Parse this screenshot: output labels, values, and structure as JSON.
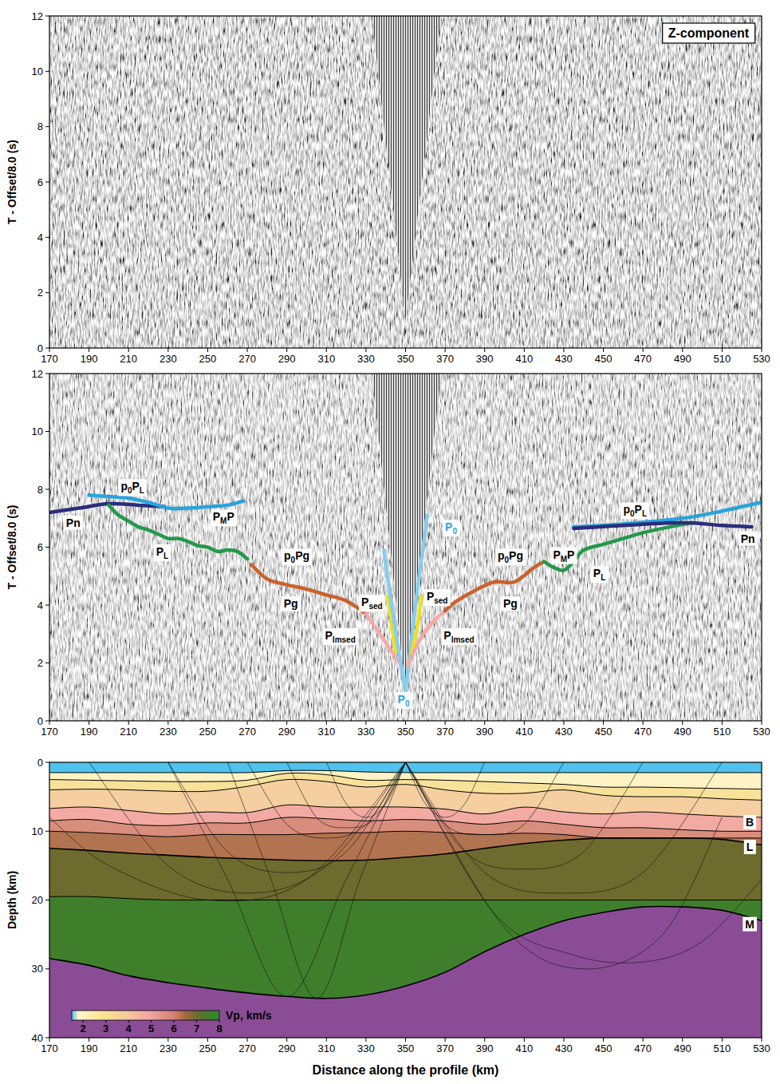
{
  "chart_data": [
    {
      "type": "seismic_section",
      "title": "Z-component",
      "ylabel": "T - Offset/8.0 (s)",
      "xlim": [
        170,
        530
      ],
      "xticks": [
        170,
        190,
        210,
        230,
        250,
        270,
        290,
        310,
        330,
        350,
        370,
        390,
        410,
        430,
        450,
        470,
        490,
        510,
        530
      ],
      "ylim": [
        0,
        12
      ],
      "yticks": [
        0,
        2,
        4,
        6,
        8,
        10,
        12
      ],
      "mute_zone": {
        "x": [
          333,
          350,
          368
        ],
        "y": [
          12,
          1.0,
          12
        ]
      }
    },
    {
      "type": "line",
      "ylabel": "T - Offset/8.0 (s)",
      "xlim": [
        170,
        530
      ],
      "xticks": [
        170,
        190,
        210,
        230,
        250,
        270,
        290,
        310,
        330,
        350,
        370,
        390,
        410,
        430,
        450,
        470,
        490,
        510,
        530
      ],
      "ylim": [
        0,
        12
      ],
      "yticks": [
        0,
        2,
        4,
        6,
        8,
        10,
        12
      ],
      "mute_zone": {
        "x": [
          333,
          350,
          368
        ],
        "y": [
          12,
          1.0,
          12
        ]
      },
      "series": [
        {
          "color": "#2b2d7c",
          "x": [
            170,
            185,
            200,
            215,
            228
          ],
          "values": [
            7.2,
            7.35,
            7.5,
            7.45,
            7.4
          ]
        },
        {
          "color": "#2aa3dd",
          "x": [
            190,
            200,
            210,
            220,
            230,
            240,
            250,
            260,
            268
          ],
          "values": [
            7.8,
            7.75,
            7.7,
            7.55,
            7.35,
            7.35,
            7.4,
            7.45,
            7.6
          ]
        },
        {
          "color": "#23994a",
          "x": [
            200,
            205,
            210,
            215,
            220,
            225,
            230,
            235,
            240,
            245,
            250,
            255,
            260,
            265,
            270
          ],
          "values": [
            7.45,
            7.1,
            6.9,
            6.7,
            6.6,
            6.45,
            6.3,
            6.3,
            6.2,
            6.05,
            6.0,
            5.85,
            5.9,
            5.85,
            5.6
          ]
        },
        {
          "color": "#c9622c",
          "x": [
            272,
            280,
            290,
            300,
            310,
            320,
            330
          ],
          "values": [
            5.4,
            4.9,
            4.7,
            4.55,
            4.35,
            4.15,
            3.7
          ]
        },
        {
          "color": "#f3aaa8",
          "x": [
            330,
            335,
            340,
            345,
            348
          ],
          "values": [
            3.7,
            3.2,
            2.7,
            2.2,
            1.9
          ]
        },
        {
          "color": "#efe01c",
          "x": [
            341,
            343,
            345
          ],
          "values": [
            4.3,
            3.3,
            2.4
          ]
        },
        {
          "color": "#86cdee",
          "x": [
            339,
            344,
            350
          ],
          "values": [
            5.9,
            3.5,
            1.0
          ]
        },
        {
          "color": "#86cdee",
          "x": [
            350,
            355,
            361
          ],
          "values": [
            1.0,
            4.0,
            7.1
          ]
        },
        {
          "color": "#efe01c",
          "x": [
            353,
            356,
            358
          ],
          "values": [
            2.3,
            3.3,
            4.3
          ]
        },
        {
          "color": "#f3aaa8",
          "x": [
            351,
            355,
            360,
            365,
            370
          ],
          "values": [
            1.9,
            2.5,
            3.1,
            3.5,
            3.8
          ]
        },
        {
          "color": "#c9622c",
          "x": [
            370,
            375,
            385,
            395,
            405,
            415,
            420
          ],
          "values": [
            3.8,
            4.1,
            4.5,
            4.8,
            4.8,
            5.3,
            5.5
          ]
        },
        {
          "color": "#23994a",
          "x": [
            420,
            425,
            430,
            435,
            440,
            450,
            460,
            470,
            480,
            495
          ],
          "values": [
            5.5,
            5.3,
            5.2,
            5.5,
            5.9,
            6.1,
            6.3,
            6.5,
            6.65,
            6.85
          ]
        },
        {
          "color": "#2aa3dd",
          "x": [
            435,
            460,
            490,
            510,
            530
          ],
          "values": [
            6.7,
            6.8,
            7.0,
            7.25,
            7.55
          ]
        },
        {
          "color": "#2b2d7c",
          "x": [
            435,
            460,
            490,
            510,
            525
          ],
          "values": [
            6.65,
            6.75,
            6.85,
            6.75,
            6.7
          ]
        }
      ],
      "annotations": [
        {
          "text": "Pn",
          "x": 182,
          "y": 6.85
        },
        {
          "text": "p0PL",
          "x": 212,
          "y": 8.1
        },
        {
          "text": "PMP",
          "x": 258,
          "y": 7.05
        },
        {
          "text": "PL",
          "x": 227,
          "y": 5.85
        },
        {
          "text": "p0Pg",
          "x": 295,
          "y": 5.7
        },
        {
          "text": "Pg",
          "x": 292,
          "y": 4.05
        },
        {
          "text": "Psed",
          "x": 333,
          "y": 4.1
        },
        {
          "text": "Plmsed",
          "x": 317,
          "y": 2.95
        },
        {
          "text": "P0",
          "x": 349,
          "y": 0.75,
          "color": "#2aa3dd"
        },
        {
          "text": "P0",
          "x": 373,
          "y": 6.7,
          "color": "#2aa3dd"
        },
        {
          "text": "Psed",
          "x": 366,
          "y": 4.3
        },
        {
          "text": "Plmsed",
          "x": 377,
          "y": 2.95
        },
        {
          "text": "p0Pg",
          "x": 403,
          "y": 5.7
        },
        {
          "text": "Pg",
          "x": 403,
          "y": 4.05
        },
        {
          "text": "PMP",
          "x": 430,
          "y": 5.75
        },
        {
          "text": "PL",
          "x": 448,
          "y": 5.1
        },
        {
          "text": "p0PL",
          "x": 466,
          "y": 7.3
        },
        {
          "text": "Pn",
          "x": 523,
          "y": 6.3
        }
      ]
    },
    {
      "type": "velocity_model",
      "xlabel": "Distance along the profile (km)",
      "ylabel": "Depth (km)",
      "xlim": [
        170,
        530
      ],
      "xticks": [
        170,
        190,
        210,
        230,
        250,
        270,
        290,
        310,
        330,
        350,
        370,
        390,
        410,
        430,
        450,
        470,
        490,
        510,
        530
      ],
      "ylim": [
        0,
        40
      ],
      "yticks": [
        0,
        10,
        20,
        30,
        40
      ],
      "x": [
        170,
        190,
        210,
        230,
        250,
        270,
        290,
        310,
        330,
        350,
        370,
        390,
        410,
        430,
        450,
        470,
        490,
        510,
        530
      ],
      "layers": [
        {
          "color": "#4fc3ee",
          "top": [
            0,
            0,
            0,
            0,
            0,
            0,
            0,
            0,
            0,
            0,
            0,
            0,
            0,
            0,
            0,
            0,
            0,
            0,
            0
          ]
        },
        {
          "color": "#fdf3c4",
          "top": [
            1.5,
            1.5,
            1.5,
            1.5,
            1.5,
            1.5,
            1.2,
            1.2,
            1.4,
            1.5,
            1.5,
            1.5,
            1.5,
            1.5,
            1.5,
            1.5,
            1.5,
            1.5,
            1.5
          ]
        },
        {
          "color": "#f8e29a",
          "top": [
            2.5,
            2.6,
            2.7,
            2.8,
            2.8,
            2.6,
            1.6,
            1.8,
            2.6,
            2.5,
            2.6,
            2.8,
            3.0,
            3.2,
            3.6,
            3.6,
            3.7,
            3.8,
            3.9
          ]
        },
        {
          "color": "#f6cfa0",
          "top": [
            4.0,
            3.9,
            4.0,
            4.2,
            4.2,
            3.5,
            2.5,
            2.8,
            3.6,
            3.2,
            4.0,
            4.5,
            4.5,
            4.0,
            4.8,
            5.0,
            5.0,
            5.3,
            5.5
          ]
        },
        {
          "color": "#f2aaa2",
          "top": [
            6.7,
            6.5,
            7.0,
            7.5,
            7.2,
            7.3,
            6.2,
            6.5,
            6.5,
            6.5,
            6.8,
            7.5,
            6.5,
            7.2,
            7.5,
            7.2,
            7.5,
            7.8,
            8.0
          ]
        },
        {
          "color": "#d98d7c",
          "top": [
            8.5,
            8.3,
            9.0,
            9.2,
            8.8,
            8.8,
            8.0,
            8.2,
            8.5,
            8.3,
            8.5,
            9.0,
            8.5,
            9.0,
            9.5,
            9.5,
            9.8,
            10.0,
            10.0
          ]
        },
        {
          "color": "#b27450",
          "top": [
            10.0,
            10.2,
            10.5,
            10.8,
            10.5,
            10.5,
            10.5,
            10.3,
            10.2,
            10.0,
            10.2,
            10.5,
            10.3,
            10.5,
            11.0,
            11.0,
            11.0,
            11.0,
            11.0
          ]
        },
        {
          "color": "#6e6b2e",
          "top": [
            12.5,
            12.8,
            13.2,
            13.5,
            13.8,
            14.0,
            14.2,
            14.3,
            14.2,
            13.8,
            13.3,
            12.5,
            11.8,
            11.3,
            11.0,
            11.0,
            11.0,
            11.2,
            12.0
          ]
        },
        {
          "color": "#3f7f2c",
          "top": [
            19.5,
            19.5,
            19.8,
            20,
            20,
            20,
            20,
            20,
            20,
            20,
            20,
            20,
            20,
            20,
            20,
            20,
            20,
            20,
            20
          ]
        },
        {
          "color": "#8b4c96",
          "top": [
            28.5,
            29.5,
            31.0,
            32.0,
            32.8,
            33.5,
            34.0,
            34.3,
            33.8,
            32.5,
            30.5,
            27.5,
            25.0,
            23.0,
            21.8,
            21.0,
            21.0,
            21.5,
            23.0
          ]
        }
      ],
      "rays": [
        {
          "x": [
            350,
            340,
            330,
            320,
            310
          ],
          "y": [
            0,
            6,
            8,
            6,
            0
          ]
        },
        {
          "x": [
            350,
            335,
            320,
            305,
            290
          ],
          "y": [
            0,
            8,
            9.5,
            8,
            0
          ]
        },
        {
          "x": [
            350,
            330,
            310,
            290,
            270
          ],
          "y": [
            0,
            9,
            11,
            9,
            0
          ]
        },
        {
          "x": [
            350,
            320,
            290,
            260,
            230
          ],
          "y": [
            0,
            13,
            16,
            13,
            0
          ]
        },
        {
          "x": [
            350,
            310,
            270,
            230,
            190
          ],
          "y": [
            0,
            15,
            19,
            15,
            0
          ]
        },
        {
          "x": [
            350,
            300,
            250,
            200,
            170
          ],
          "y": [
            0,
            17,
            20,
            15,
            8
          ]
        },
        {
          "x": [
            350,
            327,
            305,
            282,
            260
          ],
          "y": [
            0,
            17,
            34.3,
            17,
            0
          ]
        },
        {
          "x": [
            350,
            320,
            290,
            260,
            230
          ],
          "y": [
            0,
            17,
            34,
            17,
            0
          ]
        },
        {
          "x": [
            350,
            360,
            370,
            380,
            390
          ],
          "y": [
            0,
            6,
            8,
            6,
            0
          ]
        },
        {
          "x": [
            350,
            370,
            390,
            410,
            430
          ],
          "y": [
            0,
            9,
            10.5,
            9,
            0
          ]
        },
        {
          "x": [
            350,
            380,
            410,
            440,
            470
          ],
          "y": [
            0,
            13,
            15.5,
            13,
            0
          ]
        },
        {
          "x": [
            350,
            390,
            430,
            470,
            510
          ],
          "y": [
            0,
            16,
            19,
            16,
            0
          ]
        },
        {
          "x": [
            350,
            395,
            435,
            470,
            500,
            530
          ],
          "y": [
            0,
            22,
            28,
            29,
            26,
            17
          ]
        },
        {
          "x": [
            350,
            400,
            440,
            480,
            510
          ],
          "y": [
            0,
            24,
            30,
            25,
            8
          ]
        }
      ],
      "annotations": [
        {
          "text": "B",
          "x": 524,
          "y": 8.7
        },
        {
          "text": "L",
          "x": 524,
          "y": 12.3
        },
        {
          "text": "M",
          "x": 524,
          "y": 23.5
        }
      ],
      "colorbar": {
        "label": "Vp, km/s",
        "range": [
          1.5,
          8
        ],
        "ticks": [
          2,
          3,
          4,
          5,
          6,
          7,
          8
        ],
        "stops": [
          {
            "value": 1.5,
            "color": "#4fc3ee"
          },
          {
            "value": 1.8,
            "color": "#fdf6c8"
          },
          {
            "value": 3,
            "color": "#f9e08f"
          },
          {
            "value": 4,
            "color": "#f6c79b"
          },
          {
            "value": 5,
            "color": "#f0a3a0"
          },
          {
            "value": 6,
            "color": "#d4826f"
          },
          {
            "value": 6.5,
            "color": "#a8683a"
          },
          {
            "value": 7,
            "color": "#6e6b2e"
          },
          {
            "value": 7.5,
            "color": "#3f7f2c"
          },
          {
            "value": 8,
            "color": "#2e8b2e"
          }
        ]
      }
    }
  ]
}
